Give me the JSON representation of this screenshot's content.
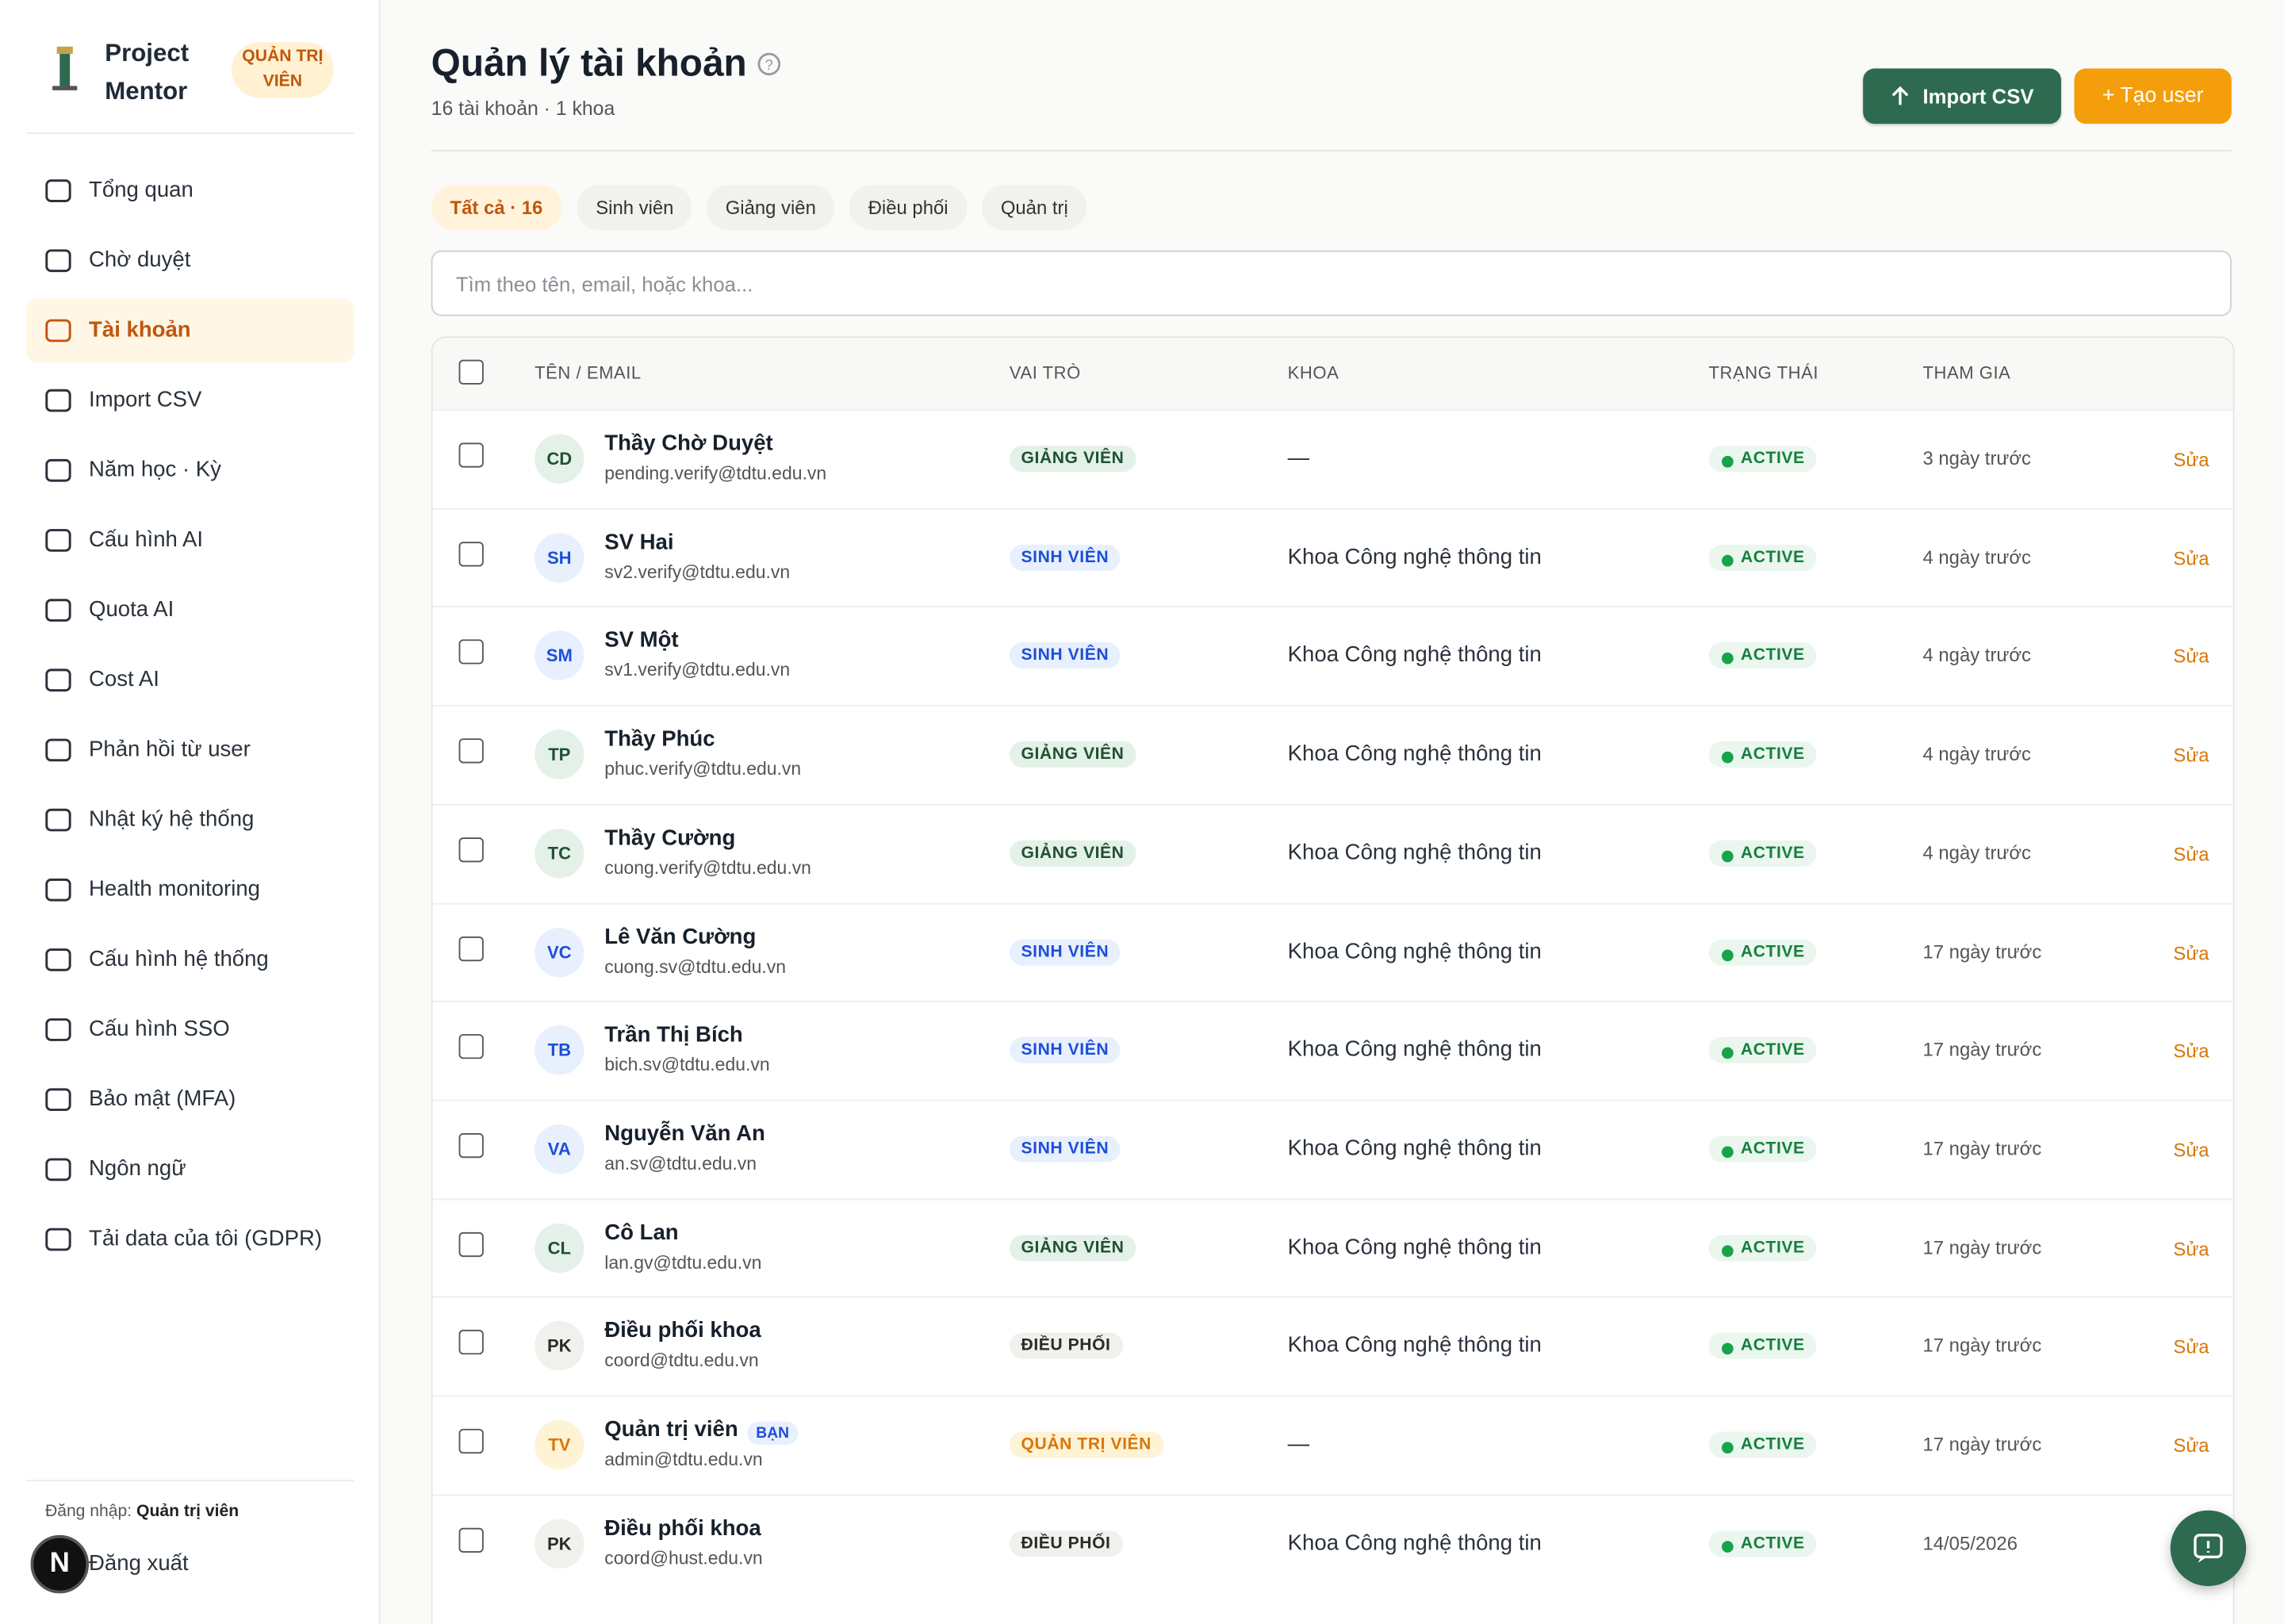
{
  "sidebar": {
    "brand": "Project Mentor",
    "role_badge": "QUẢN TRỊ VIÊN",
    "nav": [
      "Tổng quan",
      "Chờ duyệt",
      "Tài khoản",
      "Import CSV",
      "Năm học · Kỳ",
      "Cấu hình AI",
      "Quota AI",
      "Cost AI",
      "Phản hồi từ user",
      "Nhật ký hệ thống",
      "Health monitoring",
      "Cấu hình hệ thống",
      "Cấu hình SSO",
      "Bảo mật (MFA)",
      "Ngôn ngữ",
      "Tải data của tôi (GDPR)"
    ],
    "active_nav": 2,
    "login_label": "Đăng nhập:",
    "login_role": "Quản trị viên",
    "logout": "Đăng xuất",
    "dev_badge": "N"
  },
  "header": {
    "title": "Quản lý tài khoản",
    "subtitle": "16 tài khoản · 1 khoa",
    "import_button": "Import CSV",
    "create_button": "+ Tạo user"
  },
  "filters": [
    "Tất cả · 16",
    "Sinh viên",
    "Giảng viên",
    "Điều phối",
    "Quản trị"
  ],
  "active_filter": 0,
  "search_placeholder": "Tìm theo tên, email, hoặc khoa...",
  "table": {
    "columns": [
      "TÊN / EMAIL",
      "VAI TRÒ",
      "KHOA",
      "TRẠNG THÁI",
      "THAM GIA"
    ],
    "rows": [
      {
        "initials": "CD",
        "name": "Thầy Chờ Duyệt",
        "email": "pending.verify@tdtu.edu.vn",
        "role": "GIẢNG VIÊN",
        "role_fg": "#1f5132",
        "role_bg": "#e4f1e8",
        "dept": "—",
        "status": "ACTIVE",
        "joined": "3 ngày trước",
        "action": "Sửa"
      },
      {
        "initials": "SH",
        "name": "SV Hai",
        "email": "sv2.verify@tdtu.edu.vn",
        "role": "SINH VIÊN",
        "role_fg": "#1d4ed8",
        "role_bg": "#e8f0fe",
        "dept": "Khoa Công nghệ thông tin",
        "status": "ACTIVE",
        "joined": "4 ngày trước",
        "action": "Sửa"
      },
      {
        "initials": "SM",
        "name": "SV Một",
        "email": "sv1.verify@tdtu.edu.vn",
        "role": "SINH VIÊN",
        "role_fg": "#1d4ed8",
        "role_bg": "#e8f0fe",
        "dept": "Khoa Công nghệ thông tin",
        "status": "ACTIVE",
        "joined": "4 ngày trước",
        "action": "Sửa"
      },
      {
        "initials": "TP",
        "name": "Thầy Phúc",
        "email": "phuc.verify@tdtu.edu.vn",
        "role": "GIẢNG VIÊN",
        "role_fg": "#1f5132",
        "role_bg": "#e4f1e8",
        "dept": "Khoa Công nghệ thông tin",
        "status": "ACTIVE",
        "joined": "4 ngày trước",
        "action": "Sửa"
      },
      {
        "initials": "TC",
        "name": "Thầy Cường",
        "email": "cuong.verify@tdtu.edu.vn",
        "role": "GIẢNG VIÊN",
        "role_fg": "#1f5132",
        "role_bg": "#e4f1e8",
        "dept": "Khoa Công nghệ thông tin",
        "status": "ACTIVE",
        "joined": "4 ngày trước",
        "action": "Sửa"
      },
      {
        "initials": "VC",
        "name": "Lê Văn Cường",
        "email": "cuong.sv@tdtu.edu.vn",
        "role": "SINH VIÊN",
        "role_fg": "#1d4ed8",
        "role_bg": "#e8f0fe",
        "dept": "Khoa Công nghệ thông tin",
        "status": "ACTIVE",
        "joined": "17 ngày trước",
        "action": "Sửa"
      },
      {
        "initials": "TB",
        "name": "Trần Thị Bích",
        "email": "bich.sv@tdtu.edu.vn",
        "role": "SINH VIÊN",
        "role_fg": "#1d4ed8",
        "role_bg": "#e8f0fe",
        "dept": "Khoa Công nghệ thông tin",
        "status": "ACTIVE",
        "joined": "17 ngày trước",
        "action": "Sửa"
      },
      {
        "initials": "VA",
        "name": "Nguyễn Văn An",
        "email": "an.sv@tdtu.edu.vn",
        "role": "SINH VIÊN",
        "role_fg": "#1d4ed8",
        "role_bg": "#e8f0fe",
        "dept": "Khoa Công nghệ thông tin",
        "status": "ACTIVE",
        "joined": "17 ngày trước",
        "action": "Sửa"
      },
      {
        "initials": "CL",
        "name": "Cô Lan",
        "email": "lan.gv@tdtu.edu.vn",
        "role": "GIẢNG VIÊN",
        "role_fg": "#1f5132",
        "role_bg": "#e4f1e8",
        "dept": "Khoa Công nghệ thông tin",
        "status": "ACTIVE",
        "joined": "17 ngày trước",
        "action": "Sửa"
      },
      {
        "initials": "PK",
        "name": "Điều phối khoa",
        "email": "coord@tdtu.edu.vn",
        "role": "ĐIỀU PHỐI",
        "role_fg": "#2b2b2b",
        "role_bg": "#f0f1ec",
        "dept": "Khoa Công nghệ thông tin",
        "status": "ACTIVE",
        "joined": "17 ngày trước",
        "action": "Sửa"
      },
      {
        "initials": "TV",
        "name": "Quản trị viên",
        "tag": "BẠN",
        "email": "admin@tdtu.edu.vn",
        "role": "QUẢN TRỊ VIÊN",
        "role_fg": "#d97706",
        "role_bg": "#fff3d6",
        "dept": "—",
        "status": "ACTIVE",
        "joined": "17 ngày trước",
        "action": "Sửa"
      },
      {
        "initials": "PK",
        "name": "Điều phối khoa",
        "email": "coord@hust.edu.vn",
        "role": "ĐIỀU PHỐI",
        "role_fg": "#2b2b2b",
        "role_bg": "#f0f1ec",
        "dept": "Khoa Công nghệ thông tin",
        "status": "ACTIVE",
        "joined": "14/05/2026"
      }
    ]
  }
}
